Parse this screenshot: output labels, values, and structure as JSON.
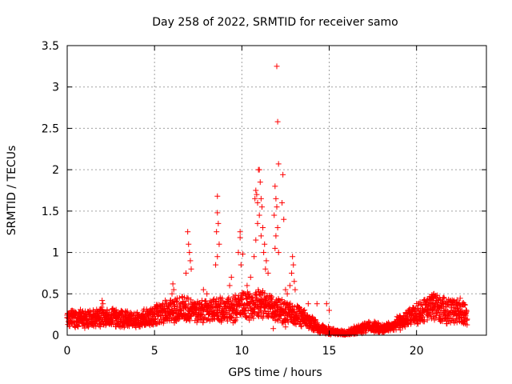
{
  "chart_data": {
    "type": "scatter",
    "title": "Day 258 of 2022, SRMTID for receiver samo",
    "xlabel": "GPS time / hours",
    "ylabel": "SRMTID / TECUs",
    "xlim": [
      0,
      24
    ],
    "ylim": [
      0,
      3.5
    ],
    "x_ticks": [
      0,
      5,
      10,
      15,
      20
    ],
    "x_tick_labels": [
      "0",
      "5",
      "10",
      "15",
      "20"
    ],
    "y_ticks": [
      0,
      0.5,
      1,
      1.5,
      2,
      2.5,
      3,
      3.5
    ],
    "y_tick_labels": [
      "0",
      "0.5",
      "1",
      "1.5",
      "2",
      "2.5",
      "3",
      "3.5"
    ],
    "grid": true,
    "marker": "+",
    "series": [
      {
        "name": "SRMTID",
        "color": "#ff0000",
        "baseline_profile": {
          "x": [
            0,
            1,
            2,
            3,
            4,
            5,
            5.5,
            6,
            6.5,
            7,
            7.5,
            8,
            8.5,
            9,
            9.5,
            10,
            10.5,
            11,
            11.5,
            12,
            12.5,
            13,
            13.5,
            14,
            14.5,
            15,
            15.5,
            16,
            16.5,
            17,
            17.5,
            18,
            18.5,
            19,
            19.5,
            20,
            20.5,
            21,
            21.5,
            22,
            22.5,
            22.9
          ],
          "y": [
            0.2,
            0.2,
            0.22,
            0.2,
            0.18,
            0.25,
            0.28,
            0.3,
            0.32,
            0.3,
            0.28,
            0.28,
            0.3,
            0.3,
            0.32,
            0.35,
            0.35,
            0.4,
            0.35,
            0.3,
            0.28,
            0.25,
            0.2,
            0.15,
            0.08,
            0.05,
            0.03,
            0.03,
            0.06,
            0.1,
            0.1,
            0.08,
            0.1,
            0.15,
            0.2,
            0.25,
            0.3,
            0.35,
            0.3,
            0.3,
            0.3,
            0.22
          ]
        },
        "spikes": [
          {
            "x": 6.9,
            "y": 1.25
          },
          {
            "x": 6.95,
            "y": 1.1
          },
          {
            "x": 7.0,
            "y": 1.0
          },
          {
            "x": 7.05,
            "y": 0.9
          },
          {
            "x": 7.1,
            "y": 0.8
          },
          {
            "x": 6.8,
            "y": 0.75
          },
          {
            "x": 8.6,
            "y": 1.68
          },
          {
            "x": 8.6,
            "y": 1.48
          },
          {
            "x": 8.65,
            "y": 1.35
          },
          {
            "x": 8.55,
            "y": 1.25
          },
          {
            "x": 8.7,
            "y": 1.1
          },
          {
            "x": 8.6,
            "y": 0.95
          },
          {
            "x": 8.5,
            "y": 0.85
          },
          {
            "x": 9.9,
            "y": 1.25
          },
          {
            "x": 9.9,
            "y": 1.18
          },
          {
            "x": 9.8,
            "y": 1.0
          },
          {
            "x": 10.05,
            "y": 0.98
          },
          {
            "x": 9.95,
            "y": 0.85
          },
          {
            "x": 10.75,
            "y": 1.65
          },
          {
            "x": 10.8,
            "y": 1.75
          },
          {
            "x": 10.85,
            "y": 1.7
          },
          {
            "x": 10.9,
            "y": 1.6
          },
          {
            "x": 10.95,
            "y": 2.0
          },
          {
            "x": 11.0,
            "y": 2.0
          },
          {
            "x": 11.05,
            "y": 1.85
          },
          {
            "x": 11.1,
            "y": 1.65
          },
          {
            "x": 11.15,
            "y": 1.55
          },
          {
            "x": 11.0,
            "y": 1.45
          },
          {
            "x": 10.9,
            "y": 1.35
          },
          {
            "x": 11.2,
            "y": 1.3
          },
          {
            "x": 11.1,
            "y": 1.2
          },
          {
            "x": 10.8,
            "y": 1.15
          },
          {
            "x": 11.3,
            "y": 1.1
          },
          {
            "x": 11.25,
            "y": 1.0
          },
          {
            "x": 10.7,
            "y": 0.95
          },
          {
            "x": 11.4,
            "y": 0.9
          },
          {
            "x": 11.35,
            "y": 0.8
          },
          {
            "x": 11.5,
            "y": 0.75
          },
          {
            "x": 11.9,
            "y": 1.8
          },
          {
            "x": 11.95,
            "y": 1.65
          },
          {
            "x": 12.0,
            "y": 1.55
          },
          {
            "x": 11.85,
            "y": 1.45
          },
          {
            "x": 12.05,
            "y": 1.3
          },
          {
            "x": 11.95,
            "y": 1.2
          },
          {
            "x": 11.9,
            "y": 1.05
          },
          {
            "x": 12.1,
            "y": 1.0
          },
          {
            "x": 12.0,
            "y": 3.25
          },
          {
            "x": 12.05,
            "y": 2.58
          },
          {
            "x": 12.1,
            "y": 2.07
          },
          {
            "x": 12.35,
            "y": 1.94
          },
          {
            "x": 12.3,
            "y": 1.6
          },
          {
            "x": 12.4,
            "y": 1.4
          },
          {
            "x": 12.9,
            "y": 0.95
          },
          {
            "x": 12.95,
            "y": 0.85
          },
          {
            "x": 12.85,
            "y": 0.75
          },
          {
            "x": 13.0,
            "y": 0.65
          },
          {
            "x": 12.75,
            "y": 0.6
          },
          {
            "x": 13.05,
            "y": 0.55
          },
          {
            "x": 12.5,
            "y": 0.55
          },
          {
            "x": 12.6,
            "y": 0.5
          },
          {
            "x": 6.05,
            "y": 0.62
          },
          {
            "x": 6.1,
            "y": 0.55
          },
          {
            "x": 6.0,
            "y": 0.5
          },
          {
            "x": 2.0,
            "y": 0.42
          },
          {
            "x": 2.05,
            "y": 0.38
          },
          {
            "x": 13.8,
            "y": 0.38
          },
          {
            "x": 14.3,
            "y": 0.38
          },
          {
            "x": 14.85,
            "y": 0.38
          },
          {
            "x": 15.0,
            "y": 0.3
          },
          {
            "x": 20.9,
            "y": 0.45
          },
          {
            "x": 21.0,
            "y": 0.5
          },
          {
            "x": 21.1,
            "y": 0.48
          },
          {
            "x": 21.2,
            "y": 0.42
          },
          {
            "x": 20.5,
            "y": 0.4
          },
          {
            "x": 22.2,
            "y": 0.4
          },
          {
            "x": 22.3,
            "y": 0.38
          },
          {
            "x": 5.3,
            "y": 0.35
          },
          {
            "x": 4.8,
            "y": 0.32
          },
          {
            "x": 7.8,
            "y": 0.55
          },
          {
            "x": 8.0,
            "y": 0.5
          },
          {
            "x": 9.3,
            "y": 0.6
          },
          {
            "x": 9.4,
            "y": 0.7
          },
          {
            "x": 10.3,
            "y": 0.6
          },
          {
            "x": 10.5,
            "y": 0.7
          },
          {
            "x": 12.2,
            "y": 0.3
          },
          {
            "x": 12.3,
            "y": 0.15
          },
          {
            "x": 11.8,
            "y": 0.08
          },
          {
            "x": 12.5,
            "y": 0.1
          }
        ]
      }
    ]
  }
}
